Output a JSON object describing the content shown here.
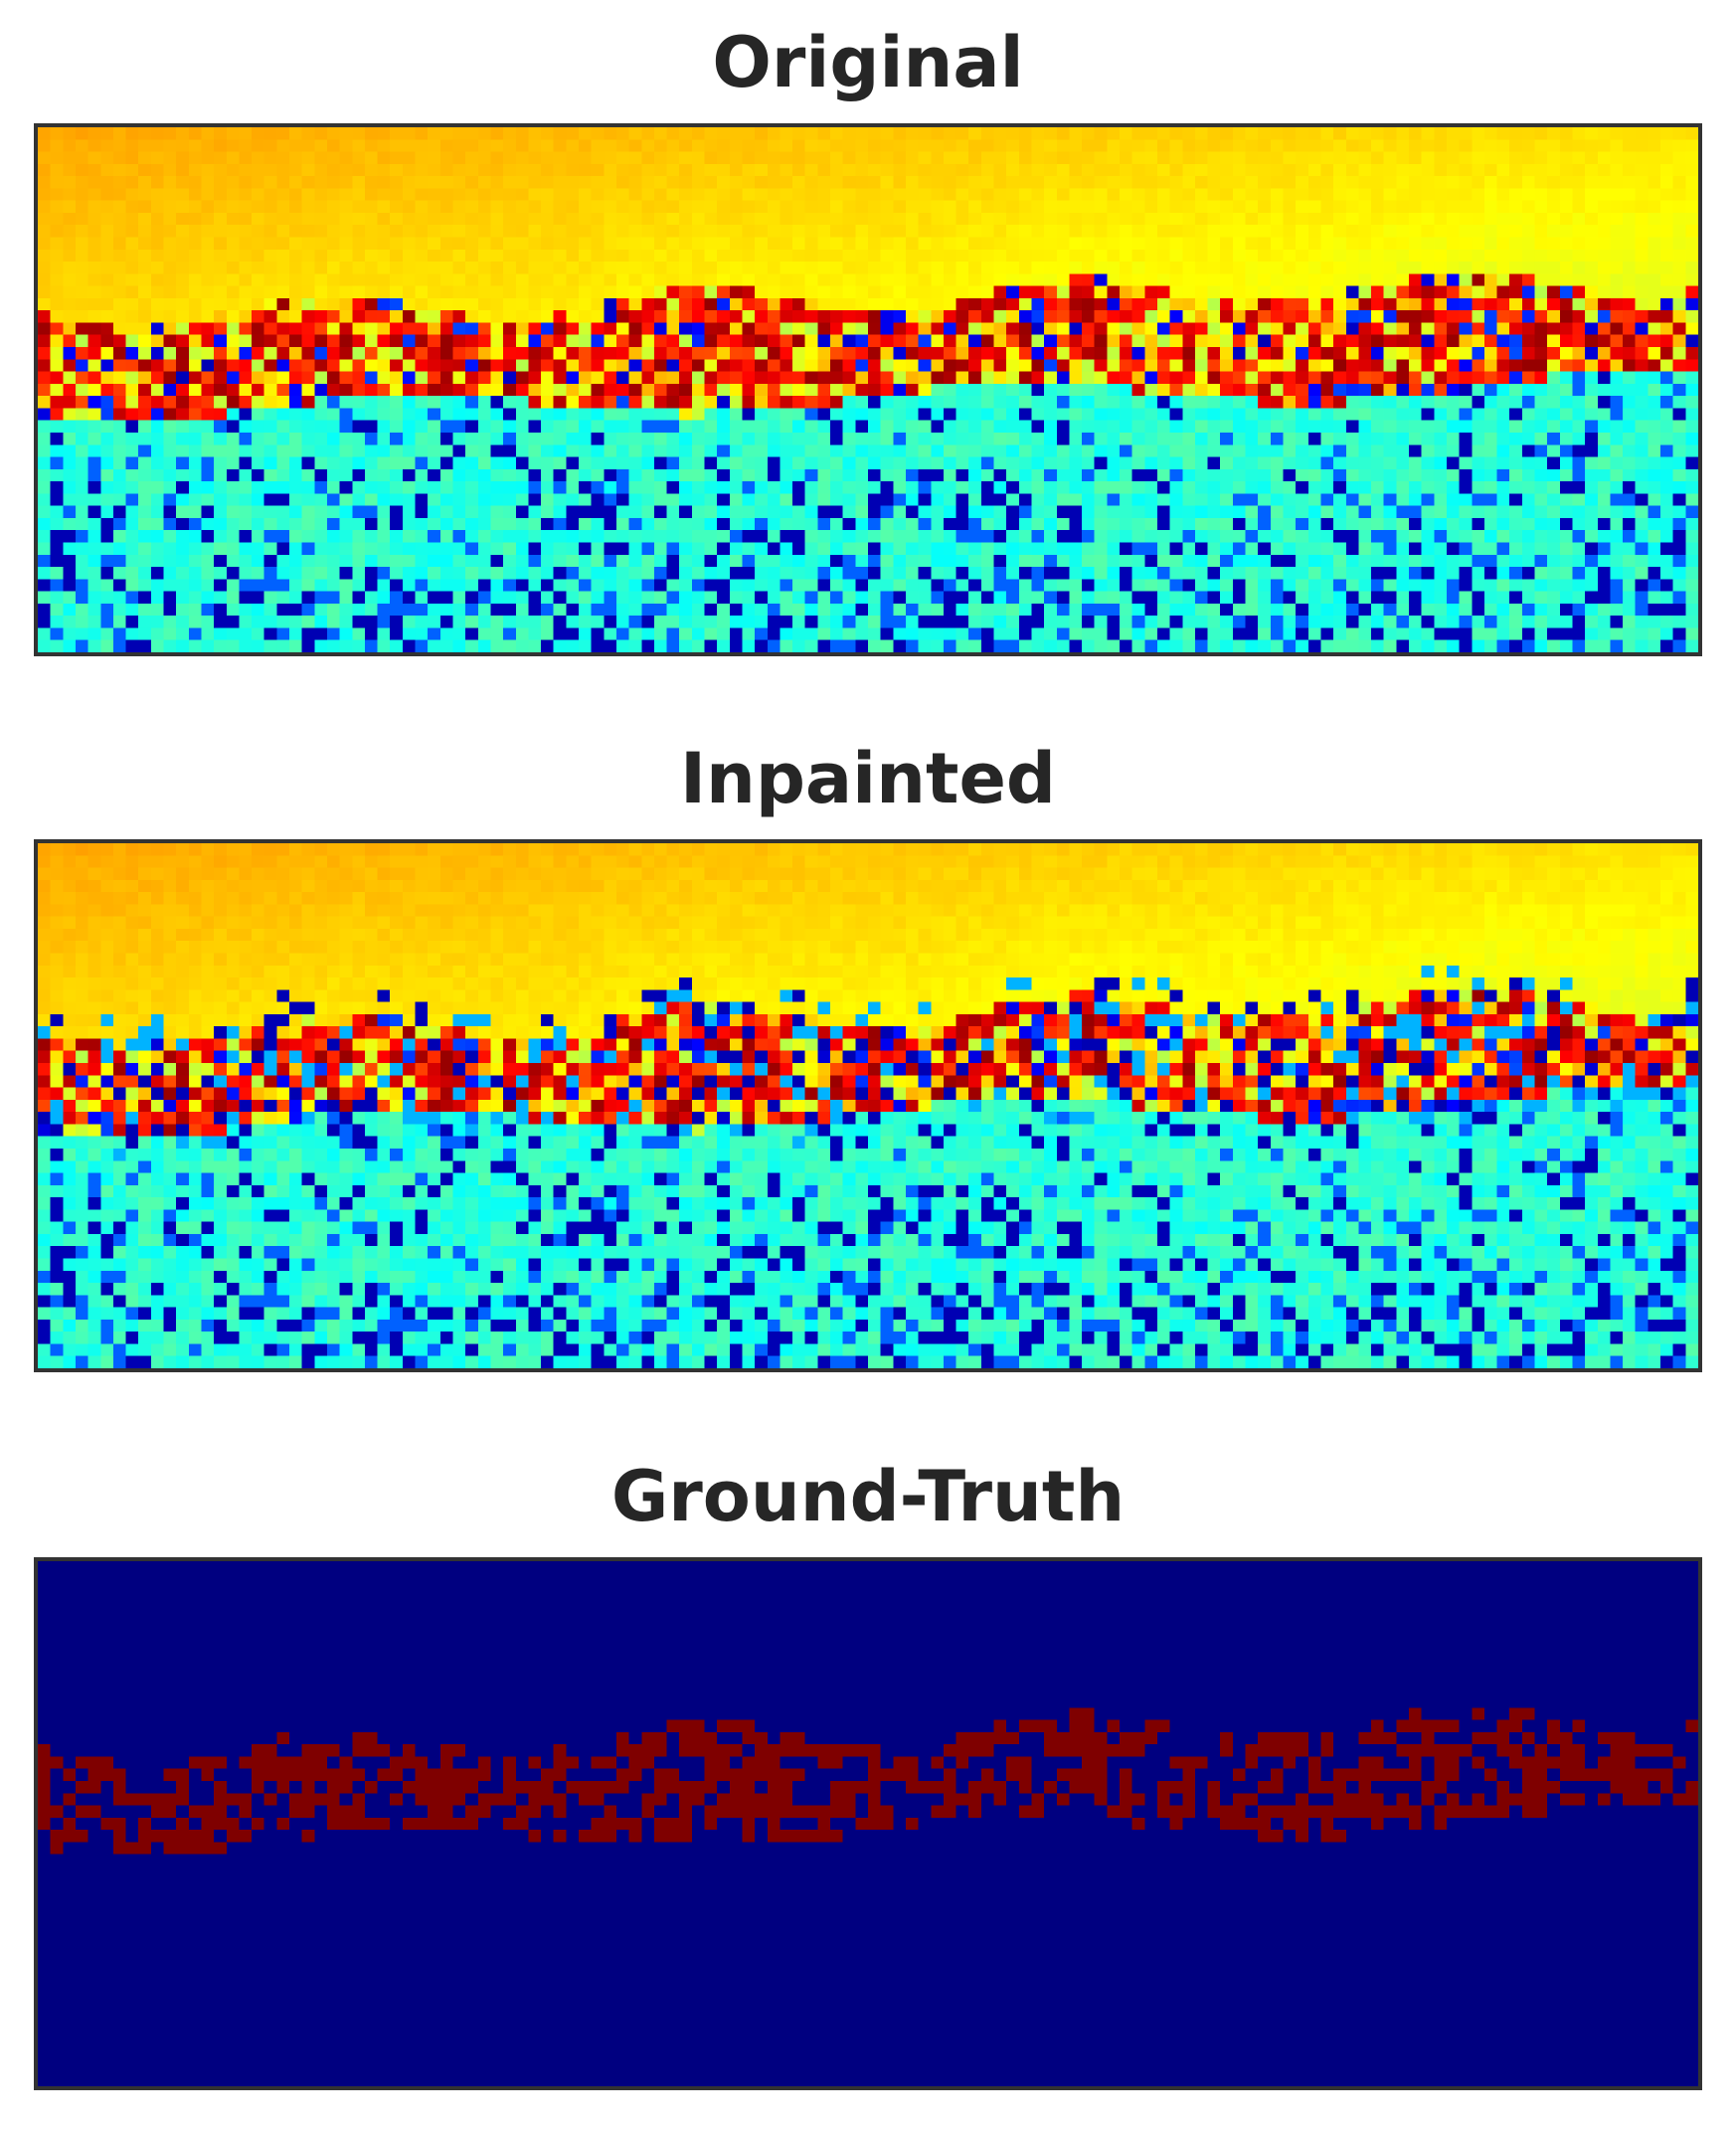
{
  "panels": [
    {
      "title": "Original"
    },
    {
      "title": "Inpainted"
    },
    {
      "title": "Ground-Truth"
    }
  ],
  "colors": {
    "jet_yellow": "#e6ff1a",
    "jet_cyan": "#30ffd8",
    "jet_blue": "#000090",
    "jet_red": "#ff2000",
    "mask_background": "#000080",
    "mask_foreground": "#7f0000"
  },
  "colormap": "jet",
  "grid": {
    "cols": 132,
    "rows": 43
  }
}
